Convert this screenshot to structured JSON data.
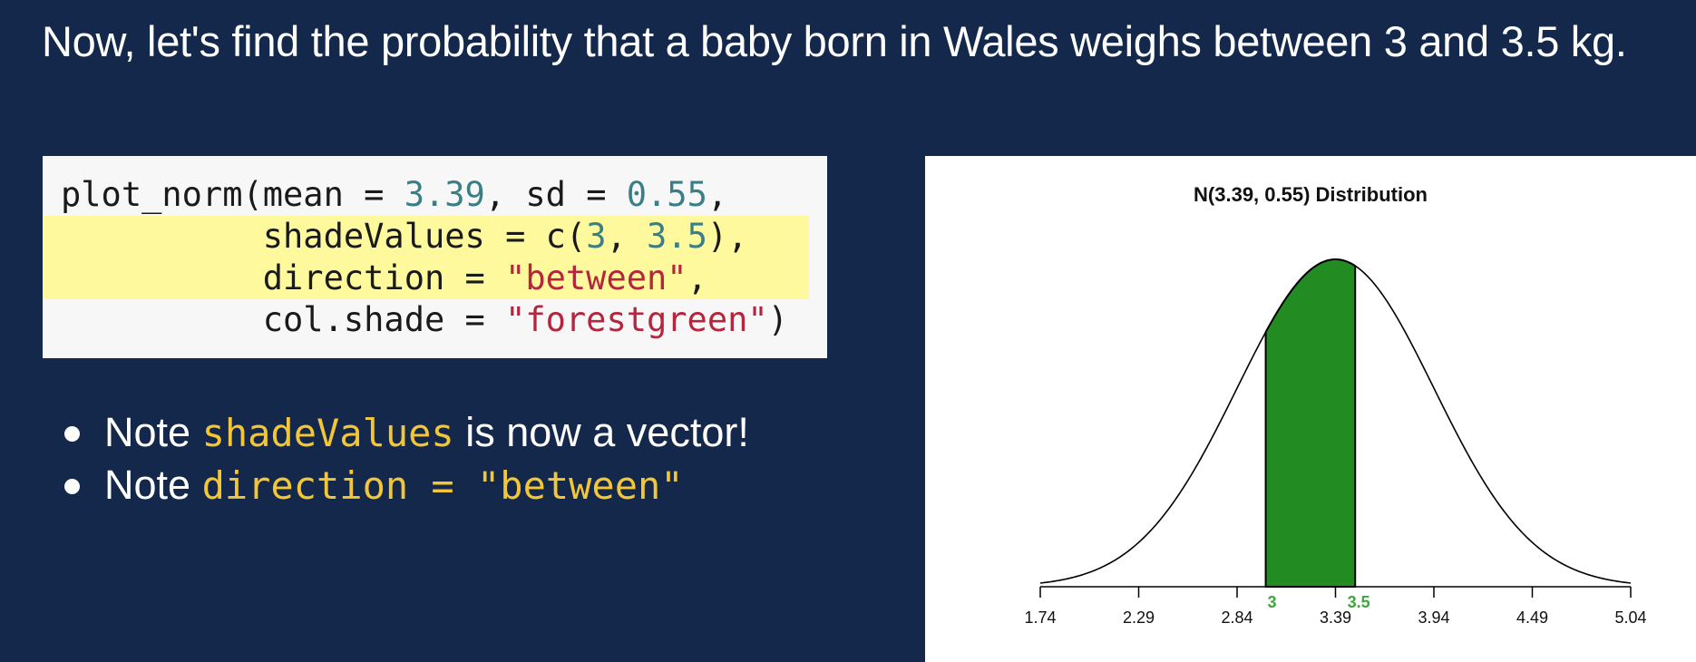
{
  "slide": {
    "title": "Now, let's find the probability that a baby born in Wales weighs between 3 and 3.5 kg."
  },
  "code": {
    "line1": {
      "a": "plot_norm(mean = ",
      "b": "3.39",
      "c": ", sd = ",
      "d": "0.55",
      "e": ","
    },
    "line2": {
      "a": "          shadeValues = c(",
      "b": "3",
      "c": ", ",
      "d": "3.5",
      "e": "),"
    },
    "line3": {
      "a": "          direction = ",
      "b": "\"between\"",
      "c": ","
    },
    "line4": {
      "a": "          col.shade = ",
      "b": "\"forestgreen\"",
      "c": ")"
    }
  },
  "bullets": [
    {
      "prefix": "Note ",
      "code": "shadeValues",
      "suffix": " is now a vector!"
    },
    {
      "prefix": "Note ",
      "code": "direction = \"between\"",
      "suffix": ""
    }
  ],
  "chart_data": {
    "type": "area",
    "title": "N(3.39, 0.55) Distribution",
    "distribution": {
      "family": "normal",
      "mean": 3.39,
      "sd": 0.55
    },
    "xlim": [
      1.74,
      5.04
    ],
    "xticks": [
      "1.74",
      "2.29",
      "2.84",
      "3.39",
      "3.94",
      "4.49",
      "5.04"
    ],
    "shade": {
      "from": 3,
      "to": 3.5,
      "color": "#228b22"
    },
    "shade_labels": [
      "3",
      "3.5"
    ],
    "shade_label_color": "#3aa83a",
    "grid": false
  }
}
